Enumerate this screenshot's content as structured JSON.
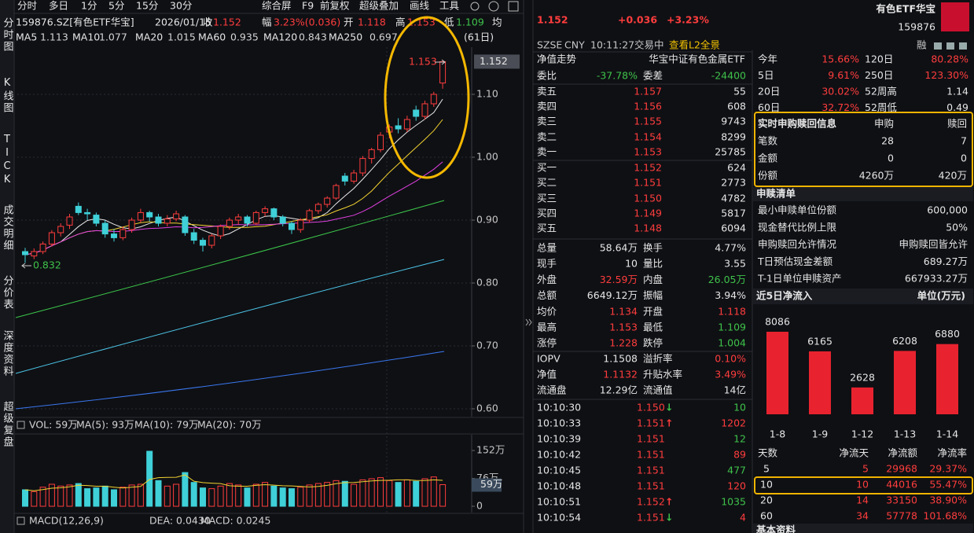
{
  "toolbar": {
    "tabs": [
      "分时",
      "多日",
      "1分",
      "5分",
      "15分",
      "30分",
      "综合屏",
      "F9",
      "前复权",
      "超级叠加",
      "画线",
      "工具"
    ]
  },
  "sidebar": [
    "分时图",
    "K线图",
    "TICK",
    "成交明细",
    "分价表",
    "深度资料",
    "超级复盘"
  ],
  "quote_bar": {
    "code": "159876.SZ[有色ETF华宝]",
    "date": "2026/01/15",
    "fields": [
      {
        "label": "收",
        "value": "1.152"
      },
      {
        "label": "幅",
        "value": "3.23%(0.036)"
      },
      {
        "label": "开",
        "value": "1.118"
      },
      {
        "label": "高",
        "value": "1.153"
      },
      {
        "label": "低",
        "value": "1.109"
      },
      {
        "label": "均"
      }
    ]
  },
  "ma_legend": {
    "items": [
      {
        "label": "MA5",
        "value": "1.113",
        "color": "#e8e8e8"
      },
      {
        "label": "MA10",
        "value": "1.077",
        "color": "#f2d230"
      },
      {
        "label": "MA20",
        "value": "1.015",
        "color": "#e040e0"
      },
      {
        "label": "MA60",
        "value": "0.935",
        "color": "#3cc84a"
      },
      {
        "label": "MA120",
        "value": "0.843",
        "color": "#4cc6e8"
      },
      {
        "label": "MA250",
        "value": "0.697",
        "color": "#3a78f0"
      }
    ],
    "period": "(61日)"
  },
  "kline": {
    "ylim": [
      0.59,
      1.175
    ],
    "yticks": [
      {
        "value": 0.6,
        "label": "0.60"
      },
      {
        "value": 0.7,
        "label": "0.70"
      },
      {
        "value": 0.8,
        "label": "0.80"
      },
      {
        "value": 0.9,
        "label": "0.90"
      },
      {
        "value": 1,
        "label": "1.00"
      },
      {
        "value": 1.1,
        "label": "1.10"
      }
    ],
    "last_price": 1.152,
    "high_label": 1.153,
    "low_label": 0.832,
    "candles": [
      [
        0.85,
        0.856,
        0.832,
        0.845
      ],
      [
        0.843,
        0.855,
        0.838,
        0.85
      ],
      [
        0.85,
        0.866,
        0.846,
        0.862
      ],
      [
        0.862,
        0.884,
        0.858,
        0.88
      ],
      [
        0.88,
        0.895,
        0.874,
        0.89
      ],
      [
        0.892,
        0.91,
        0.886,
        0.905
      ],
      [
        0.922,
        0.928,
        0.908,
        0.912
      ],
      [
        0.912,
        0.918,
        0.9,
        0.91
      ],
      [
        0.908,
        0.912,
        0.89,
        0.895
      ],
      [
        0.895,
        0.9,
        0.872,
        0.878
      ],
      [
        0.878,
        0.886,
        0.866,
        0.872
      ],
      [
        0.872,
        0.89,
        0.868,
        0.885
      ],
      [
        0.885,
        0.904,
        0.88,
        0.9
      ],
      [
        0.9,
        0.918,
        0.896,
        0.912
      ],
      [
        0.912,
        0.915,
        0.898,
        0.905
      ],
      [
        0.905,
        0.91,
        0.89,
        0.895
      ],
      [
        0.895,
        0.908,
        0.89,
        0.902
      ],
      [
        0.902,
        0.915,
        0.898,
        0.91
      ],
      [
        0.905,
        0.908,
        0.875,
        0.88
      ],
      [
        0.88,
        0.886,
        0.862,
        0.868
      ],
      [
        0.868,
        0.872,
        0.85,
        0.86
      ],
      [
        0.86,
        0.878,
        0.855,
        0.875
      ],
      [
        0.875,
        0.893,
        0.87,
        0.89
      ],
      [
        0.89,
        0.904,
        0.885,
        0.9
      ],
      [
        0.9,
        0.91,
        0.893,
        0.905
      ],
      [
        0.905,
        0.908,
        0.89,
        0.895
      ],
      [
        0.895,
        0.915,
        0.892,
        0.912
      ],
      [
        0.912,
        0.922,
        0.906,
        0.918
      ],
      [
        0.918,
        0.92,
        0.9,
        0.905
      ],
      [
        0.905,
        0.908,
        0.89,
        0.895
      ],
      [
        0.895,
        0.898,
        0.878,
        0.885
      ],
      [
        0.885,
        0.903,
        0.88,
        0.9
      ],
      [
        0.9,
        0.918,
        0.896,
        0.915
      ],
      [
        0.915,
        0.928,
        0.91,
        0.925
      ],
      [
        0.925,
        0.938,
        0.92,
        0.935
      ],
      [
        0.935,
        0.958,
        0.932,
        0.955
      ],
      [
        0.97,
        0.975,
        0.955,
        0.962
      ],
      [
        0.962,
        0.98,
        0.958,
        0.975
      ],
      [
        0.975,
        1.002,
        0.97,
        0.998
      ],
      [
        0.998,
        1.015,
        0.99,
        1.012
      ],
      [
        1.012,
        1.04,
        1.008,
        1.035
      ],
      [
        1.04,
        1.052,
        1.03,
        1.048
      ],
      [
        1.05,
        1.062,
        1.038,
        1.045
      ],
      [
        1.045,
        1.066,
        1.04,
        1.06
      ],
      [
        1.075,
        1.082,
        1.058,
        1.065
      ],
      [
        1.065,
        1.09,
        1.06,
        1.085
      ],
      [
        1.085,
        1.104,
        1.08,
        1.1
      ],
      [
        1.118,
        1.153,
        1.109,
        1.152
      ]
    ]
  },
  "volume": {
    "header": [
      {
        "text": "VOL: 59万",
        "color": "#e8e8e8"
      },
      {
        "text": "MA(5): 93万",
        "color": "#e8e8e8"
      },
      {
        "text": "MA(10): 79万",
        "color": "#f2d230"
      },
      {
        "text": "MA(20): 70万",
        "color": "#e040e0"
      }
    ],
    "ylim": [
      0,
      195
    ],
    "yticks": [
      {
        "value": 152,
        "label": "152万"
      },
      {
        "value": 76,
        "label": "76万"
      },
      0
    ],
    "last": {
      "value": 59,
      "label": "59万"
    },
    "values": [
      45,
      40,
      52,
      60,
      55,
      58,
      62,
      48,
      50,
      55,
      45,
      52,
      58,
      60,
      150,
      70,
      55,
      60,
      92,
      65,
      50,
      48,
      55,
      62,
      58,
      50,
      60,
      65,
      55,
      50,
      48,
      52,
      58,
      62,
      65,
      70,
      68,
      60,
      72,
      75,
      78,
      70,
      65,
      72,
      68,
      75,
      80,
      59
    ]
  },
  "macd": {
    "header": [
      {
        "text": "MACD(12,26,9)",
        "color": "#e8e8e8"
      },
      {
        "text": "DEA: 0.0430",
        "color": "#f2d230"
      },
      {
        "text": "MACD: 0.0245",
        "color": "#e8e8e8"
      }
    ]
  },
  "quote": {
    "price": "1.152",
    "change": "+0.036",
    "change_pct": "+3.23%",
    "name": "有色ETF华宝",
    "code": "159876",
    "status": [
      "SZSE",
      "CNY",
      "10:11:27",
      "交易中"
    ],
    "l2_link": "查看L2全景",
    "badge": "融",
    "nav_label": "净值走势",
    "index_name": "华宝中证有色金属ETF"
  },
  "order_book": {
    "ratio": [
      "委比",
      "-37.78%",
      "委差",
      "-24400"
    ],
    "asks": [
      [
        "卖五",
        "1.157",
        "55"
      ],
      [
        "卖四",
        "1.156",
        "608"
      ],
      [
        "卖三",
        "1.155",
        "9743"
      ],
      [
        "卖二",
        "1.154",
        "8299"
      ],
      [
        "卖一",
        "1.153",
        "25785"
      ]
    ],
    "bids": [
      [
        "买一",
        "1.152",
        "624"
      ],
      [
        "买二",
        "1.151",
        "2773"
      ],
      [
        "买三",
        "1.150",
        "4782"
      ],
      [
        "买四",
        "1.149",
        "5817"
      ],
      [
        "买五",
        "1.148",
        "6094"
      ]
    ]
  },
  "stats": [
    [
      "总量",
      "58.64万",
      "换手",
      "4.77%"
    ],
    [
      "现手",
      "10",
      "量比",
      "3.55"
    ],
    [
      "外盘",
      "32.59万",
      "内盘",
      "26.05万"
    ],
    [
      "总额",
      "6649.12万",
      "振幅",
      "3.94%"
    ],
    [
      "均价",
      "1.134",
      "开盘",
      "1.118"
    ],
    [
      "最高",
      "1.153",
      "最低",
      "1.109"
    ],
    [
      "涨停",
      "1.228",
      "跌停",
      "1.004"
    ]
  ],
  "iopv": [
    [
      "IOPV",
      "1.1508",
      "溢折率",
      "0.10%"
    ],
    [
      "净值",
      "1.1132",
      "升贴水率",
      "3.49%"
    ],
    [
      "流通盘",
      "12.29亿",
      "流通值",
      "14亿"
    ]
  ],
  "ticks": [
    {
      "time": "10:10:30",
      "price": "1.150",
      "arrow": "↓",
      "vol": "10"
    },
    {
      "time": "10:10:33",
      "price": "1.151",
      "arrow": "↑",
      "vol": "1202"
    },
    {
      "time": "10:10:39",
      "price": "1.151",
      "vol": "12"
    },
    {
      "time": "10:10:42",
      "price": "1.151",
      "vol": "89"
    },
    {
      "time": "10:10:45",
      "price": "1.151",
      "vol": "477"
    },
    {
      "time": "10:10:48",
      "price": "1.151",
      "vol": "120"
    },
    {
      "time": "10:10:51",
      "price": "1.152",
      "arrow": "↑",
      "vol": "1035"
    },
    {
      "time": "10:10:54",
      "price": "1.151",
      "arrow": "↓",
      "vol": "4"
    }
  ],
  "performance": [
    [
      "今年",
      "15.66%",
      "120日",
      "80.28%"
    ],
    [
      "5日",
      "9.61%",
      "250日",
      "123.30%"
    ],
    [
      "20日",
      "30.02%",
      "52周高",
      "1.14"
    ],
    [
      "60日",
      "32.72%",
      "52周低",
      "0.49"
    ]
  ],
  "creation_info": {
    "title": "实时申购赎回信息",
    "columns": [
      "申购",
      "赎回"
    ],
    "rows": [
      [
        "笔数",
        "28",
        "7"
      ],
      [
        "金额",
        "0",
        "0"
      ],
      [
        "份额",
        "4260万",
        "420万"
      ]
    ]
  },
  "creation_list": {
    "title": "申赎清单",
    "rows": [
      [
        "最小申赎单位份额",
        "600,000"
      ],
      [
        "现金替代比例上限",
        "50%"
      ],
      [
        "申购赎回允许情况",
        "申购赎回皆允许"
      ],
      [
        "T日预估现金差额",
        "689.27万"
      ],
      [
        "T-1日单位申赎资产",
        "667933.27万"
      ]
    ]
  },
  "chart_data": {
    "type": "bar",
    "title": "近5日净流入",
    "unit": "单位(万元)",
    "categories": [
      "1-8",
      "1-9",
      "1-12",
      "1-13",
      "1-14"
    ],
    "values": [
      8086,
      6165,
      2628,
      6208,
      6880
    ],
    "color": "#e8232f"
  },
  "flow_table": {
    "columns": [
      "天数",
      "净流天",
      "净流额",
      "净流率"
    ],
    "rows": [
      [
        "5",
        "5",
        "29968",
        "29.37%"
      ],
      [
        "10",
        "10",
        "44016",
        "55.47%"
      ],
      [
        "20",
        "14",
        "33150",
        "38.90%"
      ],
      [
        "60",
        "34",
        "57778",
        "101.68%"
      ]
    ]
  },
  "footer": {
    "section": "基本资料"
  }
}
